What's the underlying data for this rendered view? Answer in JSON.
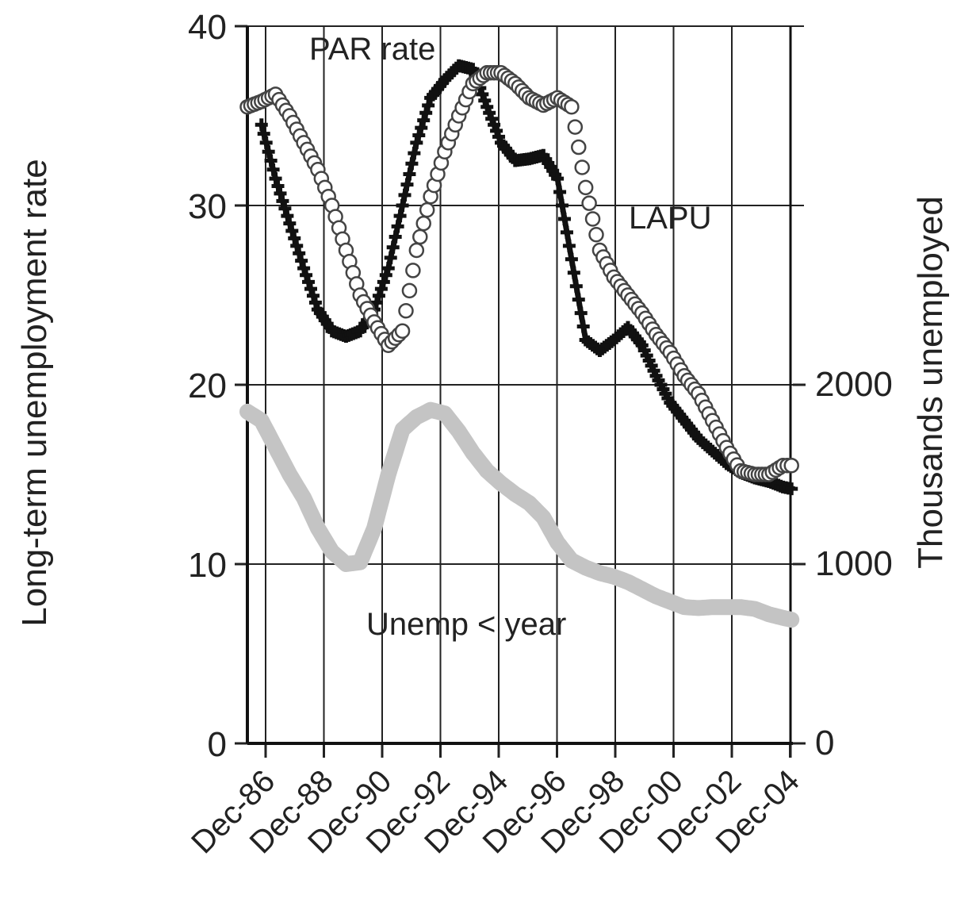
{
  "chart_data": {
    "type": "line",
    "title": "",
    "ylabel_left": "Long-term unemployment rate",
    "ylabel_right": "Thousands unemployed",
    "ylim_left": [
      0,
      40
    ],
    "ylim_right": [
      0,
      4000
    ],
    "y_ticks_left": [
      "0",
      "10",
      "20",
      "30",
      "40"
    ],
    "y_ticks_right": [
      "0",
      "1000",
      "2000"
    ],
    "x_ticks": [
      "Dec-86",
      "Dec-88",
      "Dec-90",
      "Dec-92",
      "Dec-94",
      "Dec-96",
      "Dec-98",
      "Dec-00",
      "Dec-02",
      "Dec-04"
    ],
    "grid": true,
    "series": [
      {
        "name": "PAR rate",
        "axis": "left",
        "marker": "plus",
        "color": "#111111",
        "points": [
          [
            1987.0,
            34.5
          ],
          [
            1987.5,
            31.5
          ],
          [
            1988.0,
            29.0
          ],
          [
            1988.5,
            26.5
          ],
          [
            1989.0,
            24.2
          ],
          [
            1989.5,
            23.0
          ],
          [
            1990.0,
            22.7
          ],
          [
            1990.5,
            23.0
          ],
          [
            1991.0,
            24.2
          ],
          [
            1991.5,
            26.5
          ],
          [
            1992.0,
            30.0
          ],
          [
            1992.5,
            33.5
          ],
          [
            1993.0,
            36.0
          ],
          [
            1993.5,
            37.0
          ],
          [
            1994.0,
            37.8
          ],
          [
            1994.5,
            37.6
          ],
          [
            1995.0,
            35.5
          ],
          [
            1995.5,
            33.5
          ],
          [
            1996.0,
            32.5
          ],
          [
            1996.5,
            32.6
          ],
          [
            1997.0,
            32.8
          ],
          [
            1997.5,
            31.5
          ],
          [
            1998.0,
            27.0
          ],
          [
            1998.5,
            22.5
          ],
          [
            1999.0,
            21.9
          ],
          [
            1999.5,
            22.5
          ],
          [
            2000.0,
            23.2
          ],
          [
            2000.5,
            22.2
          ],
          [
            2001.0,
            20.5
          ],
          [
            2001.5,
            19.0
          ],
          [
            2002.0,
            18.0
          ],
          [
            2002.5,
            17.0
          ],
          [
            2003.0,
            16.3
          ],
          [
            2003.5,
            15.6
          ],
          [
            2004.0,
            15.1
          ],
          [
            2004.5,
            14.8
          ],
          [
            2005.0,
            14.6
          ],
          [
            2005.5,
            14.3
          ],
          [
            2005.8,
            14.2
          ]
        ]
      },
      {
        "name": "LAPU",
        "axis": "left",
        "marker": "circle",
        "color": "#444444",
        "points": [
          [
            1986.5,
            35.5
          ],
          [
            1987.0,
            35.8
          ],
          [
            1987.5,
            36.2
          ],
          [
            1988.0,
            35.0
          ],
          [
            1988.5,
            33.5
          ],
          [
            1989.0,
            32.0
          ],
          [
            1989.5,
            30.0
          ],
          [
            1990.0,
            27.5
          ],
          [
            1990.5,
            25.0
          ],
          [
            1991.0,
            23.5
          ],
          [
            1991.5,
            22.2
          ],
          [
            1992.0,
            23.0
          ],
          [
            1992.5,
            27.5
          ],
          [
            1993.0,
            30.5
          ],
          [
            1993.5,
            33.0
          ],
          [
            1994.0,
            35.0
          ],
          [
            1994.5,
            36.8
          ],
          [
            1995.0,
            37.4
          ],
          [
            1995.5,
            37.4
          ],
          [
            1996.0,
            36.8
          ],
          [
            1996.5,
            36.0
          ],
          [
            1997.0,
            35.6
          ],
          [
            1997.5,
            36.0
          ],
          [
            1998.0,
            35.5
          ],
          [
            1998.5,
            31.0
          ],
          [
            1999.0,
            27.5
          ],
          [
            1999.5,
            26.0
          ],
          [
            2000.0,
            25.0
          ],
          [
            2000.5,
            24.0
          ],
          [
            2001.0,
            22.8
          ],
          [
            2001.5,
            21.8
          ],
          [
            2002.0,
            20.5
          ],
          [
            2002.5,
            19.5
          ],
          [
            2003.0,
            18.0
          ],
          [
            2003.5,
            16.5
          ],
          [
            2004.0,
            15.2
          ],
          [
            2004.5,
            15.0
          ],
          [
            2005.0,
            15.0
          ],
          [
            2005.5,
            15.5
          ],
          [
            2005.8,
            15.5
          ]
        ]
      },
      {
        "name": "Unemp < year",
        "axis": "right",
        "marker": "thick",
        "color": "#c4c4c4",
        "points": [
          [
            1986.5,
            1850
          ],
          [
            1987.0,
            1800
          ],
          [
            1987.5,
            1650
          ],
          [
            1988.0,
            1500
          ],
          [
            1988.5,
            1370
          ],
          [
            1989.0,
            1200
          ],
          [
            1989.5,
            1070
          ],
          [
            1990.0,
            1000
          ],
          [
            1990.5,
            1010
          ],
          [
            1991.0,
            1200
          ],
          [
            1991.5,
            1500
          ],
          [
            1992.0,
            1750
          ],
          [
            1992.5,
            1820
          ],
          [
            1993.0,
            1860
          ],
          [
            1993.5,
            1840
          ],
          [
            1994.0,
            1740
          ],
          [
            1994.5,
            1620
          ],
          [
            1995.0,
            1520
          ],
          [
            1995.5,
            1450
          ],
          [
            1996.0,
            1390
          ],
          [
            1996.5,
            1340
          ],
          [
            1997.0,
            1260
          ],
          [
            1997.5,
            1120
          ],
          [
            1998.0,
            1020
          ],
          [
            1998.5,
            980
          ],
          [
            1999.0,
            950
          ],
          [
            1999.5,
            930
          ],
          [
            2000.0,
            900
          ],
          [
            2000.5,
            860
          ],
          [
            2001.0,
            820
          ],
          [
            2001.5,
            790
          ],
          [
            2002.0,
            760
          ],
          [
            2002.5,
            755
          ],
          [
            2003.0,
            760
          ],
          [
            2003.5,
            760
          ],
          [
            2004.0,
            760
          ],
          [
            2004.5,
            750
          ],
          [
            2005.0,
            720
          ],
          [
            2005.5,
            700
          ],
          [
            2005.8,
            690
          ]
        ]
      }
    ]
  }
}
